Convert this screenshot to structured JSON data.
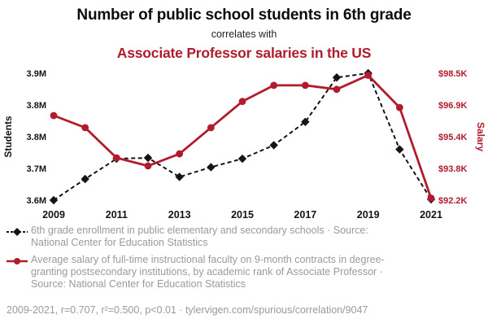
{
  "header": {
    "title": "Number of public school students in 6th grade",
    "connector": "correlates with",
    "subtitle": "Associate Professor salaries in the US"
  },
  "colors": {
    "accent_red": "#b01c2e",
    "ink": "#141414",
    "legend_gray": "#9a9a9a"
  },
  "chart_data": {
    "type": "line",
    "x": [
      2009,
      2010,
      2011,
      2012,
      2013,
      2014,
      2015,
      2016,
      2017,
      2018,
      2019,
      2020,
      2021
    ],
    "x_ticks": [
      2009,
      2011,
      2013,
      2015,
      2017,
      2019,
      2021
    ],
    "series": [
      {
        "id": "enrollment",
        "name": "6th grade enrollment in public elementary and secondary schools",
        "axis": "left",
        "marker": "diamond",
        "line_style": "dashed",
        "color": "#141414",
        "values": [
          3.6,
          3.65,
          3.698,
          3.7,
          3.655,
          3.678,
          3.698,
          3.73,
          3.785,
          3.89,
          3.9,
          3.72,
          3.602
        ],
        "unit": "millions of students"
      },
      {
        "id": "salary",
        "name": "Average salary of Associate Professors (9-month contracts)",
        "axis": "right",
        "marker": "circle",
        "line_style": "solid",
        "color": "#b01c2e",
        "values": [
          96.4,
          95.8,
          94.3,
          93.9,
          94.5,
          95.8,
          97.1,
          97.9,
          97.9,
          97.7,
          98.4,
          96.8,
          92.3
        ],
        "unit": "thousand USD"
      }
    ],
    "left_axis": {
      "label": "Students",
      "range": [
        3.6,
        3.9
      ],
      "ticks": [
        3.6,
        3.675,
        3.75,
        3.825,
        3.9
      ],
      "tick_labels": [
        "3.6M",
        "3.7M",
        "3.8M",
        "3.8M",
        "3.9M"
      ]
    },
    "right_axis": {
      "label": "Salary",
      "range": [
        92.2,
        98.5
      ],
      "ticks": [
        92.2,
        93.775,
        95.35,
        96.925,
        98.5
      ],
      "tick_labels": [
        "$92.2K",
        "$93.8K",
        "$95.4K",
        "$96.9K",
        "$98.5K"
      ]
    },
    "grid": false,
    "legend_position": "below"
  },
  "legend": [
    {
      "marker": "black-diamond-dashed",
      "text": "6th grade enrollment in public elementary and secondary schools · Source: National Center for Education Statistics"
    },
    {
      "marker": "red-circle-line",
      "text": "Average salary of full-time instructional faculty on 9-month contracts in degree-granting postsecondary institutions, by academic rank of Associate Professor · Source: National Center for Education Statistics"
    }
  ],
  "footer": {
    "stats": "2009-2021, r=0.707, r²=0.500, p<0.01 · tylervigen.com/spurious/correlation/9047"
  }
}
